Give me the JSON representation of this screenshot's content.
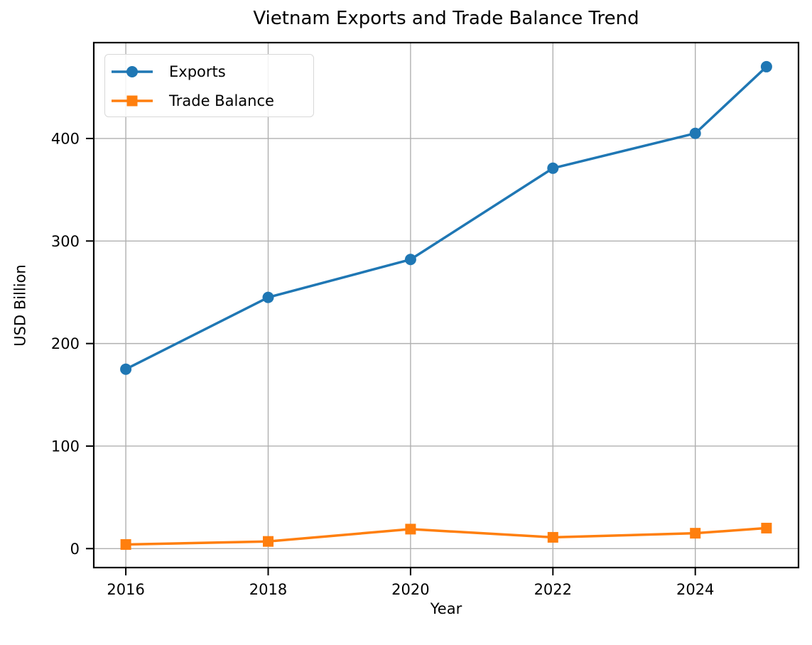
{
  "chart_data": {
    "type": "line",
    "title": "Vietnam Exports and Trade Balance Trend",
    "xlabel": "Year",
    "ylabel": "USD Billion",
    "x": [
      2016,
      2018,
      2020,
      2022,
      2024,
      2025
    ],
    "series": [
      {
        "name": "Exports",
        "values": [
          175,
          245,
          282,
          371,
          405,
          470
        ],
        "color": "#1f77b4",
        "marker": "circle"
      },
      {
        "name": "Trade Balance",
        "values": [
          4,
          7,
          19,
          11,
          15,
          20
        ],
        "color": "#ff7f0e",
        "marker": "square"
      }
    ],
    "xticks": [
      2016,
      2018,
      2020,
      2022,
      2024
    ],
    "yticks": [
      0,
      100,
      200,
      300,
      400
    ],
    "xlim": [
      2015.55,
      2025.45
    ],
    "ylim": [
      -18.5,
      493.5
    ],
    "grid": true,
    "grid_color": "#b0b0b0",
    "axis_color": "#000000",
    "text_color": "#000000",
    "legend_position": "upper left"
  }
}
